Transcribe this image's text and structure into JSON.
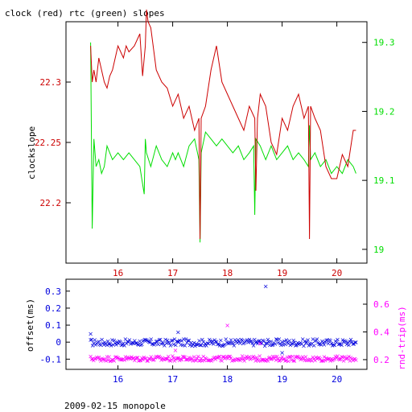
{
  "header": {
    "title": "clock (red) rtc (green) slopes"
  },
  "footer": {
    "caption": "2009-02-15 monopole"
  },
  "colors": {
    "red": "#cc0000",
    "green": "#00dd00",
    "blue": "#0000dd",
    "magenta": "#ff00ff",
    "axis": "#000000"
  },
  "chart_data": [
    {
      "type": "line",
      "title": "clock (red) rtc (green) slopes",
      "xlim": [
        15.05,
        20.55
      ],
      "x_ticks": [
        16,
        17,
        18,
        19,
        20
      ],
      "x_tick_labels": [
        "16",
        "17",
        "18",
        "19",
        "20"
      ],
      "left_axis": {
        "label": "clockslope",
        "ylim": [
          22.15,
          22.35
        ],
        "ticks": [
          22.2,
          22.25,
          22.3
        ],
        "tick_labels": [
          "22.2",
          "22.25",
          "22.3"
        ],
        "color": "#cc0000"
      },
      "right_axis": {
        "label": "",
        "ylim": [
          18.98,
          19.33
        ],
        "ticks": [
          19.0,
          19.1,
          19.2,
          19.3
        ],
        "tick_labels": [
          "19",
          "19.1",
          "19.2",
          "19.3"
        ],
        "color": "#00dd00"
      },
      "series": [
        {
          "name": "clock",
          "axis": "left",
          "color": "#cc0000",
          "x": [
            15.5,
            15.53,
            15.56,
            15.6,
            15.65,
            15.7,
            15.75,
            15.8,
            15.85,
            15.9,
            15.95,
            16.0,
            16.05,
            16.1,
            16.15,
            16.2,
            16.3,
            16.4,
            16.45,
            16.5,
            16.52,
            16.55,
            16.6,
            16.7,
            16.8,
            16.9,
            17.0,
            17.1,
            17.2,
            17.3,
            17.4,
            17.48,
            17.5,
            17.52,
            17.6,
            17.7,
            17.8,
            17.9,
            18.0,
            18.1,
            18.2,
            18.3,
            18.4,
            18.5,
            18.52,
            18.55,
            18.6,
            18.7,
            18.8,
            18.9,
            19.0,
            19.1,
            19.2,
            19.3,
            19.4,
            19.48,
            19.5,
            19.52,
            19.6,
            19.7,
            19.8,
            19.9,
            20.0,
            20.1,
            20.2,
            20.3,
            20.35
          ],
          "y": [
            22.33,
            22.3,
            22.31,
            22.3,
            22.32,
            22.31,
            22.3,
            22.295,
            22.305,
            22.31,
            22.32,
            22.33,
            22.325,
            22.32,
            22.33,
            22.325,
            22.33,
            22.34,
            22.305,
            22.33,
            22.36,
            22.35,
            22.345,
            22.31,
            22.3,
            22.295,
            22.28,
            22.29,
            22.27,
            22.28,
            22.26,
            22.27,
            22.17,
            22.27,
            22.28,
            22.31,
            22.33,
            22.3,
            22.29,
            22.28,
            22.27,
            22.26,
            22.28,
            22.27,
            22.21,
            22.27,
            22.29,
            22.28,
            22.25,
            22.24,
            22.27,
            22.26,
            22.28,
            22.29,
            22.27,
            22.28,
            22.17,
            22.28,
            22.27,
            22.26,
            22.23,
            22.22,
            22.22,
            22.24,
            22.23,
            22.26,
            22.26
          ]
        },
        {
          "name": "rtc",
          "axis": "right",
          "color": "#00dd00",
          "x": [
            15.5,
            15.53,
            15.56,
            15.6,
            15.65,
            15.7,
            15.75,
            15.8,
            15.85,
            15.9,
            16.0,
            16.1,
            16.2,
            16.3,
            16.4,
            16.48,
            16.5,
            16.52,
            16.6,
            16.7,
            16.8,
            16.9,
            17.0,
            17.05,
            17.1,
            17.2,
            17.3,
            17.4,
            17.48,
            17.5,
            17.52,
            17.6,
            17.7,
            17.8,
            17.9,
            18.0,
            18.1,
            18.2,
            18.3,
            18.4,
            18.48,
            18.5,
            18.52,
            18.6,
            18.7,
            18.8,
            18.9,
            19.0,
            19.1,
            19.2,
            19.3,
            19.4,
            19.48,
            19.5,
            19.52,
            19.6,
            19.7,
            19.8,
            19.9,
            20.0,
            20.1,
            20.2,
            20.3,
            20.35
          ],
          "y": [
            19.3,
            19.03,
            19.16,
            19.12,
            19.13,
            19.11,
            19.12,
            19.15,
            19.14,
            19.13,
            19.14,
            19.13,
            19.14,
            19.13,
            19.12,
            19.08,
            19.16,
            19.14,
            19.12,
            19.15,
            19.13,
            19.12,
            19.14,
            19.13,
            19.14,
            19.12,
            19.15,
            19.16,
            19.13,
            19.01,
            19.14,
            19.17,
            19.16,
            19.15,
            19.16,
            19.15,
            19.14,
            19.15,
            19.13,
            19.14,
            19.15,
            19.05,
            19.16,
            19.15,
            19.13,
            19.15,
            19.13,
            19.14,
            19.15,
            19.13,
            19.14,
            19.13,
            19.12,
            19.18,
            19.13,
            19.14,
            19.12,
            19.13,
            19.11,
            19.12,
            19.11,
            19.13,
            19.12,
            19.11
          ]
        }
      ]
    },
    {
      "type": "scatter",
      "xlim": [
        15.05,
        20.55
      ],
      "x_ticks": [
        16,
        17,
        18,
        19,
        20
      ],
      "x_tick_labels": [
        "16",
        "17",
        "18",
        "19",
        "20"
      ],
      "left_axis": {
        "label": "offset(ms)",
        "ylim": [
          -0.16,
          0.37
        ],
        "ticks": [
          -0.1,
          0,
          0.1,
          0.2,
          0.3
        ],
        "tick_labels": [
          "-0.1",
          "0",
          "0.1",
          "0.2",
          "0.3"
        ],
        "color": "#0000dd"
      },
      "right_axis": {
        "label": "rnd-trip(ms)",
        "ylim": [
          0.13,
          0.78
        ],
        "ticks": [
          0.2,
          0.4,
          0.6
        ],
        "tick_labels": [
          "0.2",
          "0.4",
          "0.6"
        ],
        "color": "#ff00ff"
      },
      "series": [
        {
          "name": "offset",
          "axis": "left",
          "color": "#0000dd",
          "band_center": 0.0,
          "band_spread": 0.02,
          "outliers": [
            [
              18.7,
              0.33
            ],
            [
              17.1,
              0.06
            ],
            [
              15.5,
              0.05
            ],
            [
              19.0,
              -0.06
            ]
          ]
        },
        {
          "name": "rnd-trip",
          "axis": "right",
          "color": "#ff00ff",
          "band_center": 0.21,
          "band_spread": 0.018,
          "outliers": [
            [
              18.0,
              0.45
            ],
            [
              17.05,
              0.27
            ],
            [
              18.6,
              0.32
            ]
          ]
        }
      ]
    }
  ]
}
